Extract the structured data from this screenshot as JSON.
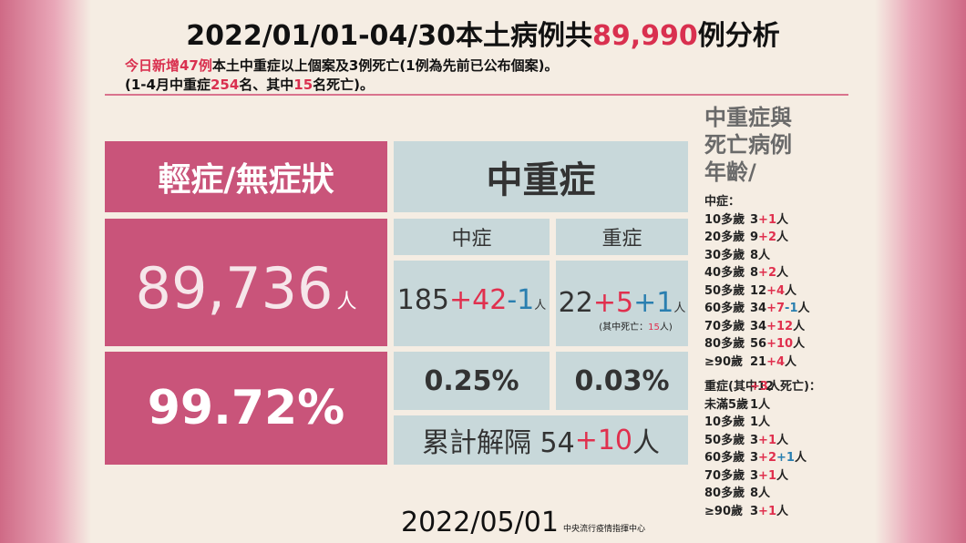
{
  "header": {
    "title": [
      {
        "text": "2022/01/01-04/30本土病例共",
        "color": "#111111"
      },
      {
        "text": "89,990",
        "color": "#d9304f"
      },
      {
        "text": "例分析",
        "color": "#111111"
      }
    ],
    "line1": [
      {
        "text": "今日新增47例",
        "color": "#d9304f"
      },
      {
        "text": "本土中重症以上個案及3例死亡(1例為先前已公布個案)。",
        "color": "#111111"
      }
    ],
    "line2": [
      {
        "text": "(1-4月中重症",
        "color": "#111111"
      },
      {
        "text": "254",
        "color": "#d9304f"
      },
      {
        "text": "名、其中",
        "color": "#111111"
      },
      {
        "text": "15",
        "color": "#d9304f"
      },
      {
        "text": "名死亡)。",
        "color": "#111111"
      }
    ]
  },
  "table": {
    "mild_header": "輕症/無症狀",
    "mild_count": "89,736",
    "mild_unit": "人",
    "mild_ratio": "99.72%",
    "severe_header": "中重症",
    "moderate_header": "中症",
    "critical_header": "重症",
    "moderate_count": [
      {
        "text": "185",
        "color": "#333333"
      },
      {
        "text": "+42",
        "color": "#e0304e"
      },
      {
        "text": "-1",
        "color": "#2a7fb0"
      },
      {
        "text": "人",
        "color": "#333333",
        "size": 13
      }
    ],
    "critical_count": [
      {
        "text": "22",
        "color": "#333333"
      },
      {
        "text": "+5",
        "color": "#e0304e"
      },
      {
        "text": "+1",
        "color": "#2a7fb0"
      },
      {
        "text": "人",
        "color": "#333333",
        "size": 13
      }
    ],
    "critical_note": [
      {
        "text": "(其中死亡：",
        "color": "#222222"
      },
      {
        "text": "15",
        "color": "#e0304e"
      },
      {
        "text": "人)",
        "color": "#222222"
      }
    ],
    "moderate_ratio": "0.25%",
    "critical_ratio": "0.03%",
    "released": [
      {
        "text": "累計解隔 54",
        "color": "#333333"
      },
      {
        "text": "+10",
        "color": "#e0304e"
      },
      {
        "text": "人",
        "color": "#333333"
      }
    ]
  },
  "footer": {
    "date": "2022/05/01",
    "agency": "中央流行疫情指揮中心"
  },
  "side": {
    "heading": [
      "中重症與",
      "死亡病例",
      "年齡/"
    ],
    "moderate_label": [
      {
        "text": "中症：",
        "color": "#222222"
      }
    ],
    "moderate_rows": [
      [
        {
          "text": "10多歲",
          "color": "#222222"
        },
        {
          "text": "3",
          "color": "#222222"
        },
        {
          "text": "+1",
          "color": "#e0304e"
        },
        {
          "text": "人",
          "color": "#222222"
        }
      ],
      [
        {
          "text": "20多歲",
          "color": "#222222"
        },
        {
          "text": "9",
          "color": "#222222"
        },
        {
          "text": "+2",
          "color": "#e0304e"
        },
        {
          "text": "人",
          "color": "#222222"
        }
      ],
      [
        {
          "text": "30多歲",
          "color": "#222222"
        },
        {
          "text": "8人",
          "color": "#222222"
        }
      ],
      [
        {
          "text": "40多歲",
          "color": "#222222"
        },
        {
          "text": "8",
          "color": "#222222"
        },
        {
          "text": "+2",
          "color": "#e0304e"
        },
        {
          "text": "人",
          "color": "#222222"
        }
      ],
      [
        {
          "text": "50多歲",
          "color": "#222222"
        },
        {
          "text": "12",
          "color": "#222222"
        },
        {
          "text": "+4",
          "color": "#e0304e"
        },
        {
          "text": "人",
          "color": "#222222"
        }
      ],
      [
        {
          "text": "60多歲",
          "color": "#222222"
        },
        {
          "text": "34",
          "color": "#222222"
        },
        {
          "text": "+7",
          "color": "#e0304e"
        },
        {
          "text": "-1",
          "color": "#2a7fb0"
        },
        {
          "text": "人",
          "color": "#222222"
        }
      ],
      [
        {
          "text": "70多歲",
          "color": "#222222"
        },
        {
          "text": "34",
          "color": "#222222"
        },
        {
          "text": "+12",
          "color": "#e0304e"
        },
        {
          "text": "人",
          "color": "#222222"
        }
      ],
      [
        {
          "text": "80多歲",
          "color": "#222222"
        },
        {
          "text": "56",
          "color": "#222222"
        },
        {
          "text": "+10",
          "color": "#e0304e"
        },
        {
          "text": "人",
          "color": "#222222"
        }
      ],
      [
        {
          "text": "≥90歲",
          "color": "#222222"
        },
        {
          "text": "21",
          "color": "#222222"
        },
        {
          "text": "+4",
          "color": "#e0304e"
        },
        {
          "text": "人",
          "color": "#222222"
        }
      ]
    ],
    "severe_label": [
      {
        "text": "重症(其中12",
        "color": "#222222"
      },
      {
        "text": "+3",
        "color": "#e0304e"
      },
      {
        "text": "人死亡)：",
        "color": "#222222"
      }
    ],
    "severe_rows": [
      [
        {
          "text": "未滿5歲",
          "color": "#222222"
        },
        {
          "text": "1人",
          "color": "#222222"
        }
      ],
      [
        {
          "text": "10多歲",
          "color": "#222222"
        },
        {
          "text": "1人",
          "color": "#222222"
        }
      ],
      [
        {
          "text": "50多歲",
          "color": "#222222"
        },
        {
          "text": "3",
          "color": "#222222"
        },
        {
          "text": "+1",
          "color": "#e0304e"
        },
        {
          "text": "人",
          "color": "#222222"
        }
      ],
      [
        {
          "text": "60多歲",
          "color": "#222222"
        },
        {
          "text": "3",
          "color": "#222222"
        },
        {
          "text": "+2",
          "color": "#e0304e"
        },
        {
          "text": "+1",
          "color": "#2a7fb0"
        },
        {
          "text": "人",
          "color": "#222222"
        }
      ],
      [
        {
          "text": "70多歲",
          "color": "#222222"
        },
        {
          "text": "3",
          "color": "#222222"
        },
        {
          "text": "+1",
          "color": "#e0304e"
        },
        {
          "text": "人",
          "color": "#222222"
        }
      ],
      [
        {
          "text": "80多歲",
          "color": "#222222"
        },
        {
          "text": "8人",
          "color": "#222222"
        }
      ],
      [
        {
          "text": "≥90歲",
          "color": "#222222"
        },
        {
          "text": "3",
          "color": "#222222"
        },
        {
          "text": "+1",
          "color": "#e0304e"
        },
        {
          "text": "人",
          "color": "#222222"
        }
      ]
    ]
  }
}
